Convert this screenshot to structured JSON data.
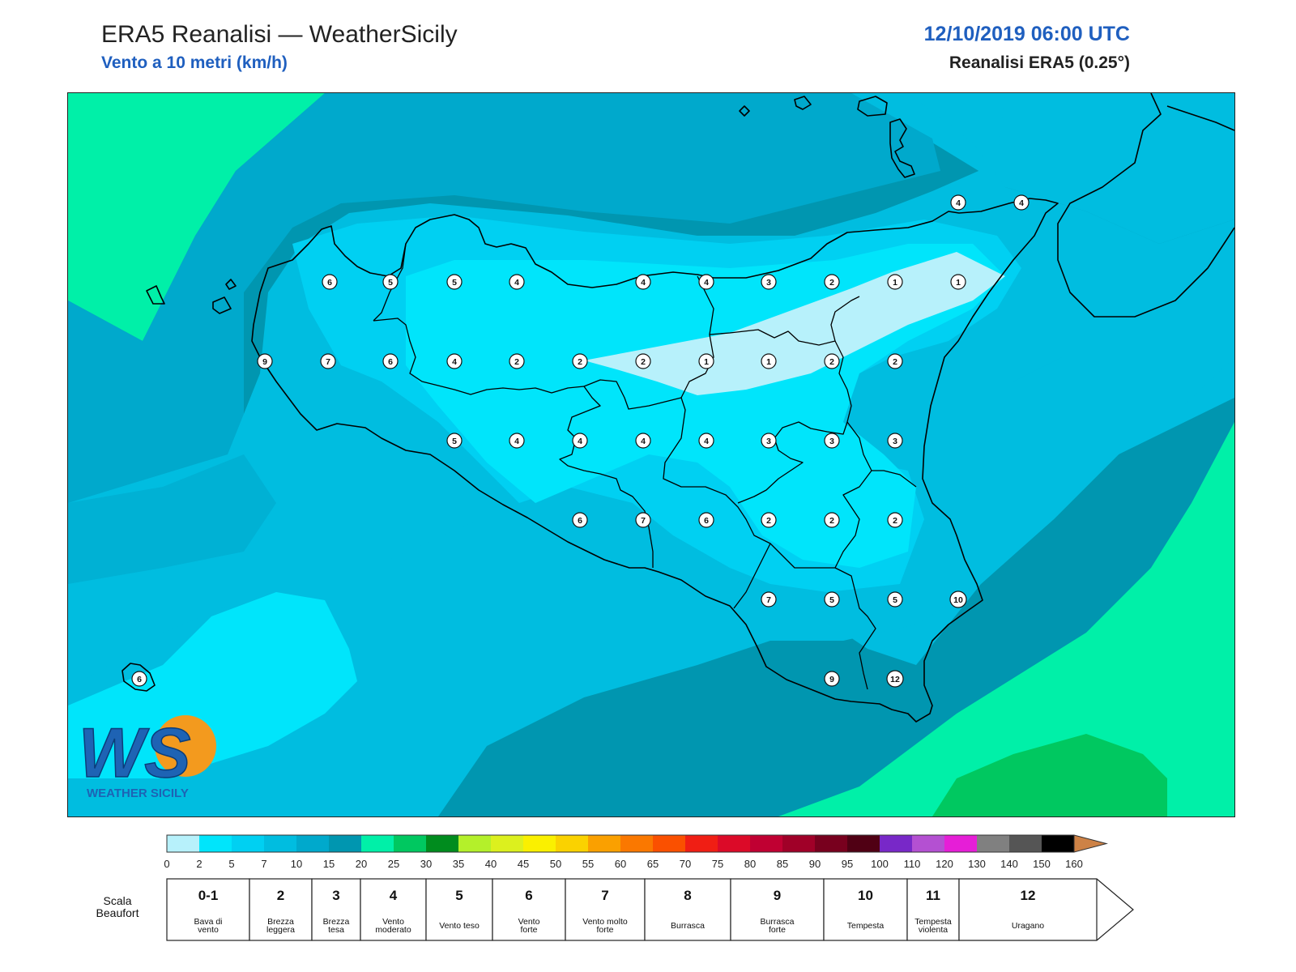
{
  "header": {
    "title": "ERA5 Reanalisi — WeatherSicily",
    "subtitle": "Vento a 10 metri (km/h)",
    "datetime": "12/10/2019 06:00 UTC",
    "model": "Reanalisi ERA5 (0.25°)"
  },
  "logo": {
    "initials": "WS",
    "name": "WEATHER SICILY"
  },
  "map_points": [
    {
      "v": "6",
      "lon": 406,
      "lat": 347
    },
    {
      "v": "5",
      "lon": 481,
      "lat": 347
    },
    {
      "v": "5",
      "lon": 560,
      "lat": 347
    },
    {
      "v": "4",
      "lon": 637,
      "lat": 347
    },
    {
      "v": "4",
      "lon": 793,
      "lat": 347
    },
    {
      "v": "4",
      "lon": 871,
      "lat": 347
    },
    {
      "v": "3",
      "lon": 948,
      "lat": 347
    },
    {
      "v": "2",
      "lon": 1026,
      "lat": 347
    },
    {
      "v": "1",
      "lon": 1104,
      "lat": 347
    },
    {
      "v": "1",
      "lon": 1182,
      "lat": 347
    },
    {
      "v": "4",
      "lon": 1182,
      "lat": 249
    },
    {
      "v": "4",
      "lon": 1260,
      "lat": 249
    },
    {
      "v": "9",
      "lon": 326,
      "lat": 445
    },
    {
      "v": "7",
      "lon": 404,
      "lat": 445
    },
    {
      "v": "6",
      "lon": 481,
      "lat": 445
    },
    {
      "v": "4",
      "lon": 560,
      "lat": 445
    },
    {
      "v": "2",
      "lon": 637,
      "lat": 445
    },
    {
      "v": "2",
      "lon": 715,
      "lat": 445
    },
    {
      "v": "2",
      "lon": 793,
      "lat": 445
    },
    {
      "v": "1",
      "lon": 871,
      "lat": 445
    },
    {
      "v": "1",
      "lon": 948,
      "lat": 445
    },
    {
      "v": "2",
      "lon": 1026,
      "lat": 445
    },
    {
      "v": "2",
      "lon": 1104,
      "lat": 445
    },
    {
      "v": "5",
      "lon": 560,
      "lat": 543
    },
    {
      "v": "4",
      "lon": 637,
      "lat": 543
    },
    {
      "v": "4",
      "lon": 715,
      "lat": 543
    },
    {
      "v": "4",
      "lon": 793,
      "lat": 543
    },
    {
      "v": "4",
      "lon": 871,
      "lat": 543
    },
    {
      "v": "3",
      "lon": 948,
      "lat": 543
    },
    {
      "v": "3",
      "lon": 1026,
      "lat": 543
    },
    {
      "v": "3",
      "lon": 1104,
      "lat": 543
    },
    {
      "v": "6",
      "lon": 715,
      "lat": 641
    },
    {
      "v": "7",
      "lon": 793,
      "lat": 641
    },
    {
      "v": "6",
      "lon": 871,
      "lat": 641
    },
    {
      "v": "2",
      "lon": 948,
      "lat": 641
    },
    {
      "v": "2",
      "lon": 1026,
      "lat": 641
    },
    {
      "v": "2",
      "lon": 1104,
      "lat": 641
    },
    {
      "v": "7",
      "lon": 948,
      "lat": 739
    },
    {
      "v": "5",
      "lon": 1026,
      "lat": 739
    },
    {
      "v": "5",
      "lon": 1104,
      "lat": 739
    },
    {
      "v": "10",
      "lon": 1182,
      "lat": 739
    },
    {
      "v": "9",
      "lon": 1026,
      "lat": 837
    },
    {
      "v": "12",
      "lon": 1104,
      "lat": 837
    },
    {
      "v": "6",
      "lon": 171,
      "lat": 837
    }
  ],
  "colorbar": {
    "ticks": [
      "0",
      "2",
      "5",
      "7",
      "10",
      "15",
      "20",
      "25",
      "30",
      "35",
      "40",
      "45",
      "50",
      "55",
      "60",
      "65",
      "70",
      "75",
      "80",
      "85",
      "90",
      "95",
      "100",
      "110",
      "120",
      "130",
      "140",
      "150",
      "160"
    ],
    "colors": [
      "#b7f1fb",
      "#00e5fb",
      "#00d0f2",
      "#00bde0",
      "#00a9cc",
      "#0096b0",
      "#00f0a8",
      "#00c860",
      "#008c1e",
      "#b4f02a",
      "#dcf01e",
      "#faf000",
      "#fad200",
      "#faa000",
      "#fa7800",
      "#fa5000",
      "#f01e14",
      "#dc0a28",
      "#c00032",
      "#a00028",
      "#78001e",
      "#500014",
      "#7828c8",
      "#b450d2",
      "#e61ed7",
      "#808080",
      "#555555",
      "#000000",
      "#8b4a2b",
      "#cd8246"
    ]
  },
  "beaufort": {
    "label": "Scala Beaufort",
    "classes": [
      {
        "num": "0-1",
        "desc": [
          "Bava di",
          "vento"
        ]
      },
      {
        "num": "2",
        "desc": [
          "Brezza",
          "leggera"
        ]
      },
      {
        "num": "3",
        "desc": [
          "Brezza",
          "tesa"
        ]
      },
      {
        "num": "4",
        "desc": [
          "Vento",
          "moderato"
        ]
      },
      {
        "num": "5",
        "desc": [
          "Vento teso"
        ]
      },
      {
        "num": "6",
        "desc": [
          "Vento",
          "forte"
        ]
      },
      {
        "num": "7",
        "desc": [
          "Vento molto",
          "forte"
        ]
      },
      {
        "num": "8",
        "desc": [
          "Burrasca"
        ]
      },
      {
        "num": "9",
        "desc": [
          "Burrasca",
          "forte"
        ]
      },
      {
        "num": "10",
        "desc": [
          "Tempesta"
        ]
      },
      {
        "num": "11",
        "desc": [
          "Tempesta",
          "violenta"
        ]
      },
      {
        "num": "12",
        "desc": [
          "Uragano"
        ]
      }
    ]
  }
}
